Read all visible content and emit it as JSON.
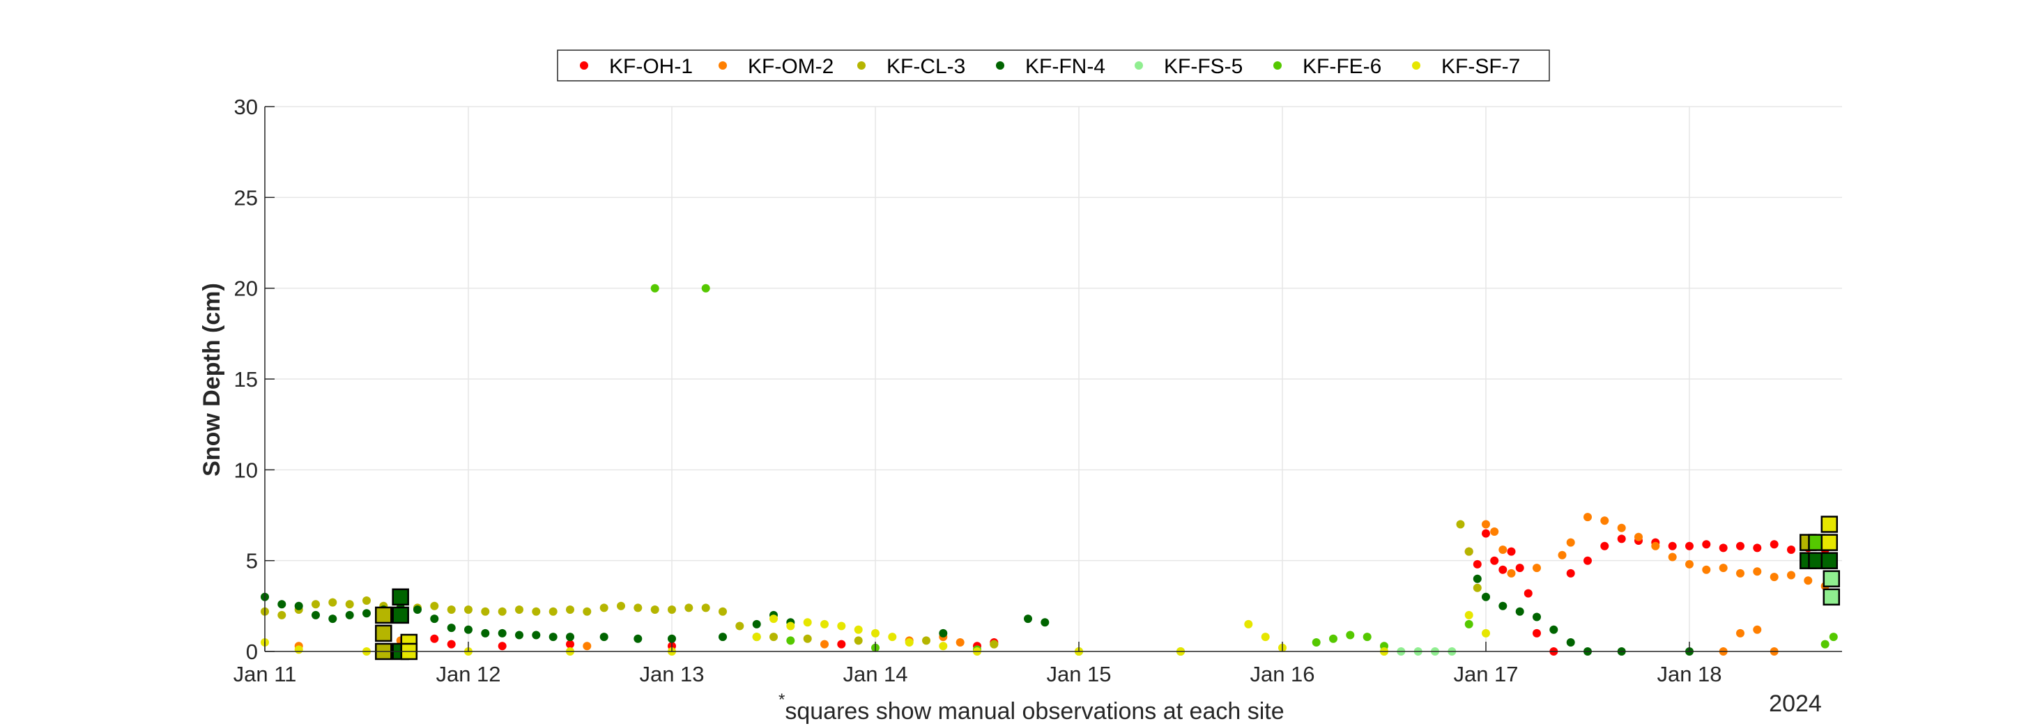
{
  "chart_data": {
    "type": "scatter",
    "title": "",
    "xlabel": "",
    "ylabel": "Snow Depth (cm)",
    "ylim": [
      0,
      30
    ],
    "yticks": [
      0,
      5,
      10,
      15,
      20,
      25,
      30
    ],
    "xlim": [
      "2024-01-11",
      "2024-01-18T18:00"
    ],
    "xticks": [
      "2024-01-11",
      "2024-01-12",
      "2024-01-13",
      "2024-01-14",
      "2024-01-15",
      "2024-01-16",
      "2024-01-17",
      "2024-01-18"
    ],
    "xtick_labels": [
      "Jan 11",
      "Jan 12",
      "Jan 13",
      "Jan 14",
      "Jan 15",
      "Jan 16",
      "Jan 17",
      "Jan 18"
    ],
    "year_label": "2024",
    "note_marker": "*",
    "note": "squares show manual observations at each site",
    "grid": true,
    "legend_position": "top-center",
    "series": [
      {
        "name": "KF-OH-1",
        "color": "#ff0000",
        "values": [
          [
            "2024-01-11T20:00",
            0.7
          ],
          [
            "2024-01-11T22:00",
            0.4
          ],
          [
            "2024-01-12T04:00",
            0.3
          ],
          [
            "2024-01-12T12:00",
            0.4
          ],
          [
            "2024-01-13T00:00",
            0.3
          ],
          [
            "2024-01-13T20:00",
            0.4
          ],
          [
            "2024-01-14T12:00",
            0.3
          ],
          [
            "2024-01-14T14:00",
            0.5
          ],
          [
            "2024-01-16T22:00",
            5.5
          ],
          [
            "2024-01-16T23:00",
            4.8
          ],
          [
            "2024-01-17T00:00",
            6.5
          ],
          [
            "2024-01-17T01:00",
            5.0
          ],
          [
            "2024-01-17T02:00",
            4.5
          ],
          [
            "2024-01-17T03:00",
            5.5
          ],
          [
            "2024-01-17T04:00",
            4.6
          ],
          [
            "2024-01-17T05:00",
            3.2
          ],
          [
            "2024-01-17T06:00",
            1.0
          ],
          [
            "2024-01-17T08:00",
            0.0
          ],
          [
            "2024-01-17T10:00",
            4.3
          ],
          [
            "2024-01-17T12:00",
            5.0
          ],
          [
            "2024-01-17T14:00",
            5.8
          ],
          [
            "2024-01-17T16:00",
            6.2
          ],
          [
            "2024-01-17T18:00",
            6.1
          ],
          [
            "2024-01-17T20:00",
            6.0
          ],
          [
            "2024-01-17T22:00",
            5.8
          ],
          [
            "2024-01-18T00:00",
            5.8
          ],
          [
            "2024-01-18T02:00",
            5.9
          ],
          [
            "2024-01-18T04:00",
            5.7
          ],
          [
            "2024-01-18T06:00",
            5.8
          ],
          [
            "2024-01-18T08:00",
            5.7
          ],
          [
            "2024-01-18T10:00",
            5.9
          ],
          [
            "2024-01-18T12:00",
            5.6
          ],
          [
            "2024-01-18T14:00",
            5.7
          ],
          [
            "2024-01-18T16:00",
            5.6
          ]
        ]
      },
      {
        "name": "KF-OM-2",
        "color": "#ff7f00",
        "values": [
          [
            "2024-01-11T04:00",
            0.3
          ],
          [
            "2024-01-11T16:00",
            0.6
          ],
          [
            "2024-01-12T14:00",
            0.3
          ],
          [
            "2024-01-13T18:00",
            0.4
          ],
          [
            "2024-01-14T04:00",
            0.6
          ],
          [
            "2024-01-14T08:00",
            0.8
          ],
          [
            "2024-01-14T10:00",
            0.5
          ],
          [
            "2024-01-14T14:00",
            0.4
          ],
          [
            "2024-01-17T00:00",
            7.0
          ],
          [
            "2024-01-17T01:00",
            6.6
          ],
          [
            "2024-01-17T02:00",
            5.6
          ],
          [
            "2024-01-17T03:00",
            4.3
          ],
          [
            "2024-01-17T06:00",
            4.6
          ],
          [
            "2024-01-17T09:00",
            5.3
          ],
          [
            "2024-01-17T10:00",
            6.0
          ],
          [
            "2024-01-17T12:00",
            7.4
          ],
          [
            "2024-01-17T14:00",
            7.2
          ],
          [
            "2024-01-17T16:00",
            6.8
          ],
          [
            "2024-01-17T18:00",
            6.3
          ],
          [
            "2024-01-17T20:00",
            5.8
          ],
          [
            "2024-01-17T22:00",
            5.2
          ],
          [
            "2024-01-18T00:00",
            4.8
          ],
          [
            "2024-01-18T02:00",
            4.5
          ],
          [
            "2024-01-18T04:00",
            4.6
          ],
          [
            "2024-01-18T06:00",
            4.3
          ],
          [
            "2024-01-18T08:00",
            4.4
          ],
          [
            "2024-01-18T10:00",
            4.1
          ],
          [
            "2024-01-18T12:00",
            4.2
          ],
          [
            "2024-01-18T14:00",
            3.9
          ],
          [
            "2024-01-18T16:00",
            3.6
          ],
          [
            "2024-01-18T04:00",
            0.0
          ],
          [
            "2024-01-18T06:00",
            1.0
          ],
          [
            "2024-01-18T08:00",
            1.2
          ],
          [
            "2024-01-18T10:00",
            0.0
          ]
        ]
      },
      {
        "name": "KF-CL-3",
        "color": "#b5b500",
        "values": [
          [
            "2024-01-11T00:00",
            2.2
          ],
          [
            "2024-01-11T02:00",
            2.0
          ],
          [
            "2024-01-11T04:00",
            2.3
          ],
          [
            "2024-01-11T06:00",
            2.6
          ],
          [
            "2024-01-11T08:00",
            2.7
          ],
          [
            "2024-01-11T10:00",
            2.6
          ],
          [
            "2024-01-11T12:00",
            2.8
          ],
          [
            "2024-01-11T14:00",
            2.5
          ],
          [
            "2024-01-11T16:00",
            2.6
          ],
          [
            "2024-01-11T18:00",
            2.4
          ],
          [
            "2024-01-11T20:00",
            2.5
          ],
          [
            "2024-01-11T22:00",
            2.3
          ],
          [
            "2024-01-12T00:00",
            2.3
          ],
          [
            "2024-01-12T02:00",
            2.2
          ],
          [
            "2024-01-12T04:00",
            2.2
          ],
          [
            "2024-01-12T06:00",
            2.3
          ],
          [
            "2024-01-12T08:00",
            2.2
          ],
          [
            "2024-01-12T10:00",
            2.2
          ],
          [
            "2024-01-12T12:00",
            2.3
          ],
          [
            "2024-01-12T14:00",
            2.2
          ],
          [
            "2024-01-12T16:00",
            2.4
          ],
          [
            "2024-01-12T18:00",
            2.5
          ],
          [
            "2024-01-12T20:00",
            2.4
          ],
          [
            "2024-01-12T22:00",
            2.3
          ],
          [
            "2024-01-13T00:00",
            2.3
          ],
          [
            "2024-01-13T02:00",
            2.4
          ],
          [
            "2024-01-13T04:00",
            2.4
          ],
          [
            "2024-01-13T06:00",
            2.2
          ],
          [
            "2024-01-13T08:00",
            1.4
          ],
          [
            "2024-01-13T12:00",
            0.8
          ],
          [
            "2024-01-13T16:00",
            0.7
          ],
          [
            "2024-01-13T22:00",
            0.6
          ],
          [
            "2024-01-14T06:00",
            0.6
          ],
          [
            "2024-01-14T14:00",
            0.4
          ],
          [
            "2024-01-16T21:00",
            7.0
          ],
          [
            "2024-01-16T22:00",
            5.5
          ],
          [
            "2024-01-16T23:00",
            3.5
          ]
        ]
      },
      {
        "name": "KF-FN-4",
        "color": "#006400",
        "values": [
          [
            "2024-01-11T00:00",
            3.0
          ],
          [
            "2024-01-11T02:00",
            2.6
          ],
          [
            "2024-01-11T04:00",
            2.5
          ],
          [
            "2024-01-11T06:00",
            2.0
          ],
          [
            "2024-01-11T08:00",
            1.8
          ],
          [
            "2024-01-11T10:00",
            2.0
          ],
          [
            "2024-01-11T12:00",
            2.1
          ],
          [
            "2024-01-11T14:00",
            2.3
          ],
          [
            "2024-01-11T16:00",
            2.4
          ],
          [
            "2024-01-11T18:00",
            2.3
          ],
          [
            "2024-01-11T20:00",
            1.8
          ],
          [
            "2024-01-11T22:00",
            1.3
          ],
          [
            "2024-01-12T00:00",
            1.2
          ],
          [
            "2024-01-12T02:00",
            1.0
          ],
          [
            "2024-01-12T04:00",
            1.0
          ],
          [
            "2024-01-12T06:00",
            0.9
          ],
          [
            "2024-01-12T08:00",
            0.9
          ],
          [
            "2024-01-12T10:00",
            0.8
          ],
          [
            "2024-01-12T12:00",
            0.8
          ],
          [
            "2024-01-12T16:00",
            0.8
          ],
          [
            "2024-01-12T20:00",
            0.7
          ],
          [
            "2024-01-13T00:00",
            0.7
          ],
          [
            "2024-01-13T06:00",
            0.8
          ],
          [
            "2024-01-13T10:00",
            1.5
          ],
          [
            "2024-01-13T12:00",
            2.0
          ],
          [
            "2024-01-13T14:00",
            1.6
          ],
          [
            "2024-01-14T08:00",
            1.0
          ],
          [
            "2024-01-14T18:00",
            1.8
          ],
          [
            "2024-01-14T20:00",
            1.6
          ],
          [
            "2024-01-16T23:00",
            4.0
          ],
          [
            "2024-01-17T00:00",
            3.0
          ],
          [
            "2024-01-17T02:00",
            2.5
          ],
          [
            "2024-01-17T04:00",
            2.2
          ],
          [
            "2024-01-17T06:00",
            1.9
          ],
          [
            "2024-01-17T08:00",
            1.2
          ],
          [
            "2024-01-17T10:00",
            0.5
          ],
          [
            "2024-01-17T12:00",
            0.0
          ],
          [
            "2024-01-17T16:00",
            0.0
          ],
          [
            "2024-01-18T00:00",
            0.0
          ]
        ]
      },
      {
        "name": "KF-FS-5",
        "color": "#90ee90",
        "values": [
          [
            "2024-01-16T12:00",
            0.0
          ],
          [
            "2024-01-16T14:00",
            0.0
          ],
          [
            "2024-01-16T16:00",
            0.0
          ],
          [
            "2024-01-16T18:00",
            0.0
          ],
          [
            "2024-01-16T20:00",
            0.0
          ]
        ]
      },
      {
        "name": "KF-FE-6",
        "color": "#55c800",
        "values": [
          [
            "2024-01-12T22:00",
            20.0
          ],
          [
            "2024-01-13T04:00",
            20.0
          ],
          [
            "2024-01-13T10:00",
            0.8
          ],
          [
            "2024-01-13T14:00",
            0.6
          ],
          [
            "2024-01-14T00:00",
            0.2
          ],
          [
            "2024-01-14T12:00",
            0.1
          ],
          [
            "2024-01-15T00:00",
            0.0
          ],
          [
            "2024-01-15T12:00",
            0.0
          ],
          [
            "2024-01-16T04:00",
            0.5
          ],
          [
            "2024-01-16T06:00",
            0.7
          ],
          [
            "2024-01-16T08:00",
            0.9
          ],
          [
            "2024-01-16T10:00",
            0.8
          ],
          [
            "2024-01-16T12:00",
            0.3
          ],
          [
            "2024-01-16T22:00",
            1.5
          ],
          [
            "2024-01-18T16:00",
            0.4
          ],
          [
            "2024-01-18T17:00",
            0.8
          ]
        ]
      },
      {
        "name": "KF-SF-7",
        "color": "#e6e600",
        "values": [
          [
            "2024-01-11T00:00",
            0.5
          ],
          [
            "2024-01-11T04:00",
            0.1
          ],
          [
            "2024-01-11T12:00",
            0.0
          ],
          [
            "2024-01-12T00:00",
            0.0
          ],
          [
            "2024-01-12T12:00",
            0.0
          ],
          [
            "2024-01-13T00:00",
            0.0
          ],
          [
            "2024-01-13T10:00",
            0.8
          ],
          [
            "2024-01-13T12:00",
            1.8
          ],
          [
            "2024-01-13T14:00",
            1.4
          ],
          [
            "2024-01-13T16:00",
            1.6
          ],
          [
            "2024-01-13T18:00",
            1.5
          ],
          [
            "2024-01-13T20:00",
            1.4
          ],
          [
            "2024-01-13T22:00",
            1.2
          ],
          [
            "2024-01-14T00:00",
            1.0
          ],
          [
            "2024-01-14T02:00",
            0.8
          ],
          [
            "2024-01-14T04:00",
            0.5
          ],
          [
            "2024-01-14T08:00",
            0.3
          ],
          [
            "2024-01-14T12:00",
            0.0
          ],
          [
            "2024-01-15T00:00",
            0.0
          ],
          [
            "2024-01-15T12:00",
            0.0
          ],
          [
            "2024-01-15T20:00",
            1.5
          ],
          [
            "2024-01-15T22:00",
            0.8
          ],
          [
            "2024-01-16T00:00",
            0.2
          ],
          [
            "2024-01-16T12:00",
            0.0
          ],
          [
            "2024-01-16T22:00",
            2.0
          ],
          [
            "2024-01-17T00:00",
            1.0
          ]
        ]
      }
    ],
    "manual_observations": [
      {
        "site": "KF-FN-4",
        "date": "2024-01-11T16:00",
        "value": 3.0
      },
      {
        "site": "KF-FN-4",
        "date": "2024-01-11T16:00",
        "value": 2.0
      },
      {
        "site": "KF-CL-3",
        "date": "2024-01-11T14:00",
        "value": 2.0
      },
      {
        "site": "KF-CL-3",
        "date": "2024-01-11T14:00",
        "value": 1.0
      },
      {
        "site": "KF-CL-3",
        "date": "2024-01-11T14:00",
        "value": 0.0
      },
      {
        "site": "KF-FN-4",
        "date": "2024-01-11T16:00",
        "value": 0.0
      },
      {
        "site": "KF-SF-7",
        "date": "2024-01-11T17:00",
        "value": 0.5
      },
      {
        "site": "KF-SF-7",
        "date": "2024-01-11T17:00",
        "value": 0.0
      },
      {
        "site": "KF-CL-3",
        "date": "2024-01-18T14:00",
        "value": 6.0
      },
      {
        "site": "KF-FN-4",
        "date": "2024-01-18T14:00",
        "value": 5.0
      },
      {
        "site": "KF-FE-6",
        "date": "2024-01-18T15:00",
        "value": 6.0
      },
      {
        "site": "KF-FN-4",
        "date": "2024-01-18T15:00",
        "value": 5.0
      },
      {
        "site": "KF-SF-7",
        "date": "2024-01-18T16:30",
        "value": 7.0
      },
      {
        "site": "KF-SF-7",
        "date": "2024-01-18T16:30",
        "value": 6.0
      },
      {
        "site": "KF-FN-4",
        "date": "2024-01-18T16:30",
        "value": 5.0
      },
      {
        "site": "KF-FS-5",
        "date": "2024-01-18T16:45",
        "value": 4.0
      },
      {
        "site": "KF-FS-5",
        "date": "2024-01-18T16:45",
        "value": 3.0
      }
    ]
  }
}
